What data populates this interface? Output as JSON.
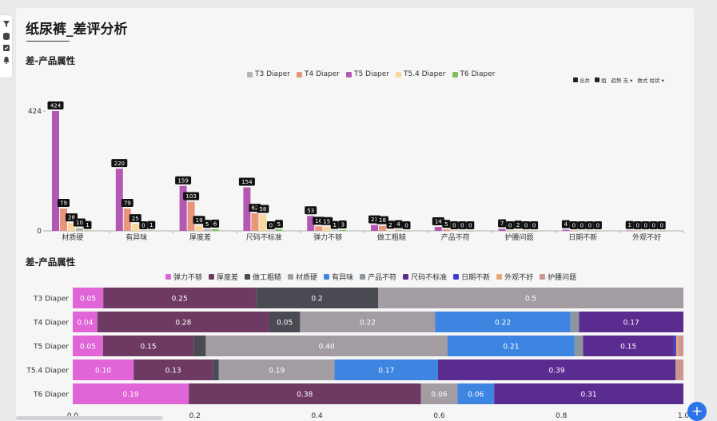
{
  "page": {
    "title": "纸尿裤_差评分析"
  },
  "toolbar": [
    {
      "label": "合并",
      "checked": true
    },
    {
      "label": "组",
      "checked": true
    },
    {
      "label": "趋势 无 ▾"
    },
    {
      "label": "数式 柱状 ▾"
    }
  ],
  "colors": {
    "T3 Diaper": "#b3b3b3",
    "T4 Diaper": "#e8957c",
    "T5 Diaper": "#b459b3",
    "T5.4 Diaper": "#f8d59b",
    "T6 Diaper": "#7fbf5b",
    "弹力不够": "#e066d8",
    "厚度差": "#6e3a63",
    "做工粗糙": "#4a4a52",
    "材质硬": "#a39ca3",
    "有异味": "#3d85e0",
    "产品不符": "#8c969e",
    "尺码不标准": "#5b2c8f",
    "日期不新": "#3d3fcc",
    "外观不好": "#e8a878",
    "护腰问题": "#c99690"
  },
  "chart_data": [
    {
      "type": "bar",
      "title": "差-产品属性",
      "categories": [
        "材质硬",
        "有异味",
        "厚度差",
        "尺码不标准",
        "弹力不够",
        "做工粗糙",
        "产品不符",
        "护腰问题",
        "日期不新",
        "外观不好"
      ],
      "series": [
        {
          "name": "T5 Diaper",
          "values": [
            424,
            220,
            159,
            154,
            53,
            21,
            14,
            7,
            4,
            1
          ]
        },
        {
          "name": "T4 Diaper",
          "values": [
            79,
            79,
            103,
            62,
            16,
            18,
            5,
            0,
            0,
            0
          ]
        },
        {
          "name": "T5.4 Diaper",
          "values": [
            28,
            25,
            19,
            58,
            15,
            2,
            0,
            2,
            0,
            0
          ]
        },
        {
          "name": "T3 Diaper",
          "values": [
            10,
            0,
            5,
            0,
            1,
            4,
            0,
            0,
            0,
            0
          ]
        },
        {
          "name": "T6 Diaper",
          "values": [
            1,
            1,
            6,
            5,
            3,
            0,
            0,
            0,
            0,
            0
          ]
        }
      ],
      "legend": [
        "T3 Diaper",
        "T4 Diaper",
        "T5 Diaper",
        "T5.4 Diaper",
        "T6 Diaper"
      ],
      "legend_position": "top-center",
      "y_ticks": [
        0,
        424
      ],
      "ylim": [
        0,
        424
      ]
    },
    {
      "type": "bar",
      "orientation": "horizontal-stacked",
      "title": "差-产品属性",
      "categories": [
        "T3 Diaper",
        "T4 Diaper",
        "T5 Diaper",
        "T5.4 Diaper",
        "T6 Diaper"
      ],
      "legend": [
        "弹力不够",
        "厚度差",
        "做工粗糙",
        "材质硬",
        "有异味",
        "产品不符",
        "尺码不标准",
        "日期不新",
        "外观不好",
        "护腰问题"
      ],
      "legend_position": "top-center",
      "series": [
        {
          "name": "弹力不够",
          "values": [
            0.05,
            0.04,
            0.05,
            0.1,
            0.19
          ],
          "labels": [
            "0.05",
            "0.04",
            "0.05",
            "0.10",
            "0.19"
          ]
        },
        {
          "name": "厚度差",
          "values": [
            0.25,
            0.28,
            0.15,
            0.13,
            0.38
          ],
          "labels": [
            "0.25",
            "0.28",
            "0.15",
            "0.13",
            "0.38"
          ]
        },
        {
          "name": "做工粗糙",
          "values": [
            0.2,
            0.05,
            0.02,
            0.01,
            0.0
          ],
          "labels": [
            "0.2",
            "0.05",
            "",
            "",
            ""
          ]
        },
        {
          "name": "材质硬",
          "values": [
            0.5,
            0.22,
            0.4,
            0.19,
            0.06
          ],
          "labels": [
            "0.5",
            "0.22",
            "0.40",
            "0.19",
            "0.06"
          ]
        },
        {
          "name": "有异味",
          "values": [
            0.0,
            0.22,
            0.21,
            0.17,
            0.06
          ],
          "labels": [
            "",
            "0.22",
            "0.21",
            "0.17",
            "0.06"
          ]
        },
        {
          "name": "产品不符",
          "values": [
            0.0,
            0.014,
            0.014,
            0.0,
            0.0
          ],
          "labels": [
            "",
            "",
            "",
            "",
            ""
          ]
        },
        {
          "name": "尺码不标准",
          "values": [
            0.0,
            0.17,
            0.15,
            0.39,
            0.31
          ],
          "labels": [
            "",
            "0.17",
            "0.15",
            "0.39",
            "0.31"
          ]
        },
        {
          "name": "日期不新",
          "values": [
            0.0,
            0.0,
            0.004,
            0.0,
            0.0
          ],
          "labels": [
            "",
            "",
            "",
            "",
            ""
          ]
        },
        {
          "name": "外观不好",
          "values": [
            0.0,
            0.0,
            0.004,
            0.0,
            0.0
          ],
          "labels": [
            "",
            "",
            "",
            "",
            ""
          ]
        },
        {
          "name": "护腰问题",
          "values": [
            0.0,
            0.0,
            0.008,
            0.013,
            0.0
          ],
          "labels": [
            "",
            "",
            "",
            "",
            ""
          ]
        }
      ],
      "x_ticks": [
        "0.0",
        "0.2",
        "0.4",
        "0.6",
        "0.8",
        "1.0"
      ],
      "xlim": [
        0,
        1
      ]
    }
  ]
}
